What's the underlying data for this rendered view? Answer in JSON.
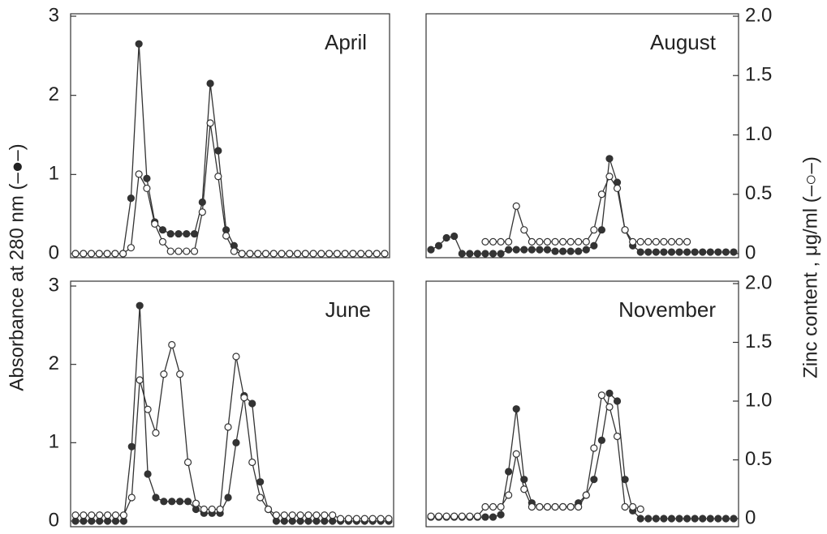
{
  "ylabel": "Absorbance at 280 nm  (–●–)",
  "y2label": "Zinc content , μg/ml (–○–)",
  "chart_data": [
    {
      "type": "line",
      "title": "April",
      "ylim": [
        0,
        3
      ],
      "yticks": [
        0,
        1,
        2,
        3
      ],
      "y2lim": [
        0,
        2
      ],
      "series": [
        {
          "color": "#333333",
          "marker_fill": "#333333",
          "values": [
            0,
            0,
            0,
            0,
            0,
            0,
            0,
            0.7,
            2.65,
            0.95,
            0.4,
            0.3,
            0.25,
            0.25,
            0.25,
            0.25,
            0.65,
            2.15,
            1.3,
            0.3,
            0.1,
            0,
            0,
            0,
            0,
            0,
            0,
            0,
            0,
            0,
            0,
            0,
            0,
            0,
            0,
            0,
            0,
            0,
            0,
            0
          ]
        },
        {
          "color": "#333333",
          "marker_fill": "#ffffff",
          "axis": "y2",
          "values": [
            0,
            0,
            0,
            0,
            0,
            0,
            0,
            0.05,
            0.67,
            0.55,
            0.25,
            0.1,
            0.02,
            0.02,
            0.02,
            0.02,
            0.35,
            1.1,
            0.65,
            0.15,
            0.02,
            0,
            0,
            0,
            0,
            0,
            0,
            0,
            0,
            0,
            0,
            0,
            0,
            0,
            0,
            0,
            0,
            0,
            0,
            0
          ]
        }
      ]
    },
    {
      "type": "line",
      "title": "August",
      "ylim": [
        0,
        3
      ],
      "y2lim": [
        0,
        2
      ],
      "y2ticks": [
        0,
        0.5,
        {
          "value": 1,
          "label": "1.0"
        },
        1.5,
        {
          "value": 2,
          "label": "2.0"
        }
      ],
      "series": [
        {
          "color": "#333333",
          "marker_fill": "#333333",
          "values": [
            0.05,
            0.1,
            0.2,
            0.22,
            0,
            0,
            0,
            0,
            0,
            0,
            0.05,
            0.05,
            0.05,
            0.05,
            0.05,
            0.05,
            0.03,
            0.03,
            0.03,
            0.03,
            0.05,
            0.1,
            0.3,
            1.2,
            0.9,
            0.3,
            0.1,
            0.02,
            0.02,
            0.02,
            0.02,
            0.02,
            0.02,
            0.02,
            0.02,
            0.02,
            0.02,
            0.02,
            0.02,
            0.02
          ]
        },
        {
          "color": "#333333",
          "marker_fill": "#ffffff",
          "axis": "y2",
          "values": [
            null,
            null,
            null,
            null,
            null,
            null,
            null,
            0.1,
            0.1,
            0.1,
            0.1,
            0.4,
            0.2,
            0.1,
            0.1,
            0.1,
            0.1,
            0.1,
            0.1,
            0.1,
            0.1,
            0.2,
            0.5,
            0.65,
            0.55,
            0.2,
            0.1,
            0.1,
            0.1,
            0.1,
            0.1,
            0.1,
            0.1,
            0.1,
            null,
            null,
            null,
            null,
            null,
            null
          ]
        }
      ]
    },
    {
      "type": "line",
      "title": "June",
      "ylim": [
        0,
        3
      ],
      "yticks": [
        0,
        1,
        2,
        3
      ],
      "y2lim": [
        0,
        2
      ],
      "series": [
        {
          "color": "#333333",
          "marker_fill": "#333333",
          "values": [
            0,
            0,
            0,
            0,
            0,
            0,
            0,
            0.95,
            2.75,
            0.6,
            0.3,
            0.25,
            0.25,
            0.25,
            0.25,
            0.15,
            0.1,
            0.1,
            0.1,
            0.3,
            1.0,
            1.6,
            1.5,
            0.5,
            0.15,
            0,
            0,
            0,
            0,
            0,
            0,
            0,
            0,
            0,
            0,
            0,
            0,
            0,
            0,
            0
          ]
        },
        {
          "color": "#333333",
          "marker_fill": "#ffffff",
          "axis": "y2",
          "values": [
            0.05,
            0.05,
            0.05,
            0.05,
            0.05,
            0.05,
            0.05,
            0.2,
            1.2,
            0.95,
            0.75,
            1.25,
            1.5,
            1.25,
            0.5,
            0.15,
            0.1,
            0.1,
            0.1,
            0.8,
            1.4,
            1.05,
            0.5,
            0.2,
            0.1,
            0.05,
            0.05,
            0.05,
            0.05,
            0.05,
            0.05,
            0.05,
            0.05,
            0.02,
            0.02,
            0.02,
            0.02,
            0.02,
            0.02,
            0.02
          ]
        }
      ]
    },
    {
      "type": "line",
      "title": "November",
      "ylim": [
        0,
        3
      ],
      "y2lim": [
        0,
        2
      ],
      "y2ticks": [
        0,
        0.5,
        {
          "value": 1,
          "label": "1.0"
        },
        1.5,
        {
          "value": 2,
          "label": "2.0"
        }
      ],
      "series": [
        {
          "color": "#333333",
          "marker_fill": "#333333",
          "values": [
            0.02,
            0.02,
            0.02,
            0.02,
            0.02,
            0.02,
            0.02,
            0.02,
            0.02,
            0.05,
            0.6,
            1.4,
            0.5,
            0.2,
            0.15,
            0.15,
            0.15,
            0.15,
            0.15,
            0.2,
            0.3,
            0.5,
            1.0,
            1.6,
            1.5,
            0.5,
            0.1,
            0,
            0,
            0,
            0,
            0,
            0,
            0,
            0,
            0,
            0,
            0,
            0,
            0
          ]
        },
        {
          "color": "#333333",
          "marker_fill": "#ffffff",
          "axis": "y2",
          "values": [
            0.02,
            0.02,
            0.02,
            0.02,
            0.02,
            0.02,
            0.02,
            0.1,
            0.1,
            0.1,
            0.2,
            0.55,
            0.25,
            0.1,
            0.1,
            0.1,
            0.1,
            0.1,
            0.1,
            0.1,
            0.2,
            0.6,
            1.05,
            0.95,
            0.7,
            0.1,
            0.1,
            0.08,
            null,
            null,
            null,
            null,
            null,
            null,
            null,
            null,
            null,
            null,
            null,
            null
          ]
        }
      ]
    }
  ]
}
